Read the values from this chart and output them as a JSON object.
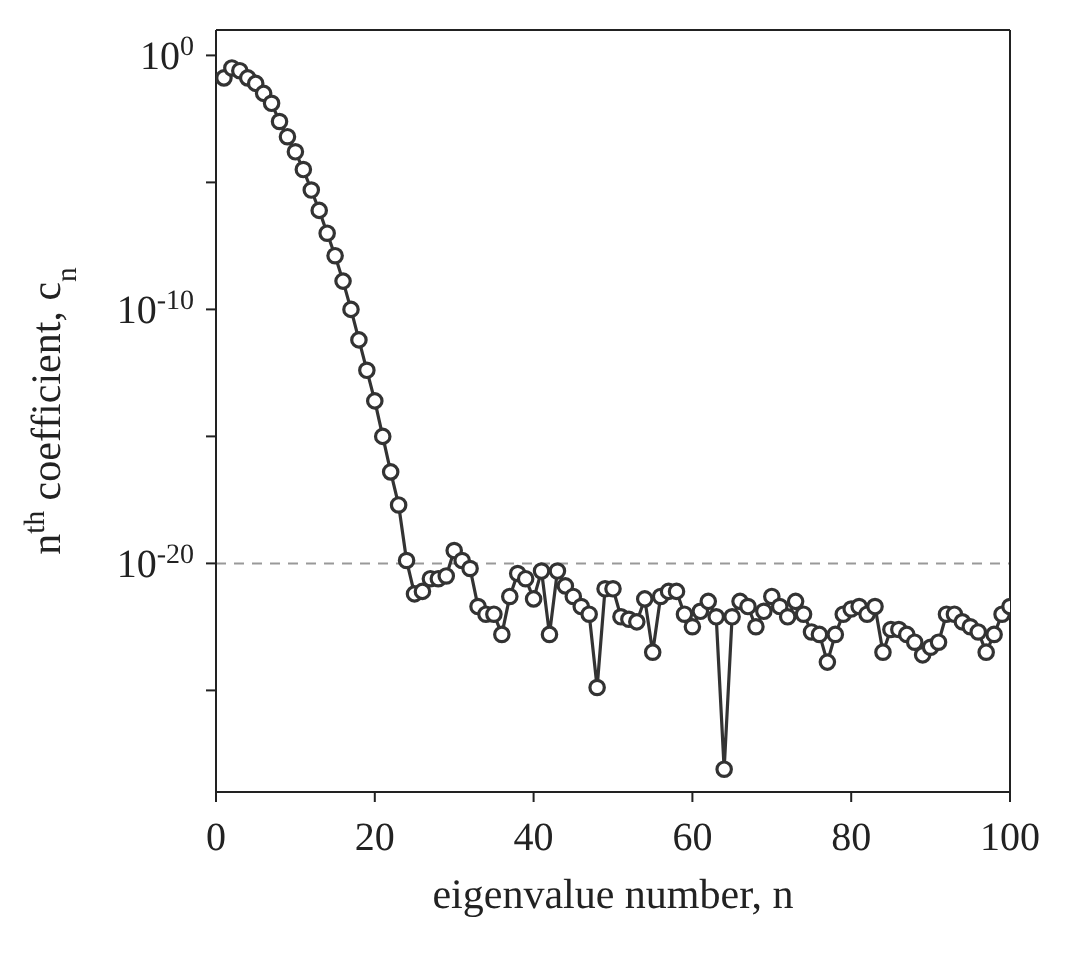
{
  "chart_data": {
    "type": "line",
    "xlabel": "eigenvalue number, n",
    "ylabel": "n$^{th}$ coefficient, c$_{n}$",
    "x": [
      1,
      2,
      3,
      4,
      5,
      6,
      7,
      8,
      9,
      10,
      11,
      12,
      13,
      14,
      15,
      16,
      17,
      18,
      19,
      20,
      21,
      22,
      23,
      24,
      25,
      26,
      27,
      28,
      29,
      30,
      31,
      32,
      33,
      34,
      35,
      36,
      37,
      38,
      39,
      40,
      41,
      42,
      43,
      44,
      45,
      46,
      47,
      48,
      49,
      50,
      51,
      52,
      53,
      54,
      55,
      56,
      57,
      58,
      59,
      60,
      61,
      62,
      63,
      64,
      65,
      66,
      67,
      68,
      69,
      70,
      71,
      72,
      73,
      74,
      75,
      76,
      77,
      78,
      79,
      80,
      81,
      82,
      83,
      84,
      85,
      86,
      87,
      88,
      89,
      90,
      91,
      92,
      93,
      94,
      95,
      96,
      97,
      98,
      99,
      100
    ],
    "series": [
      {
        "color": "#333333",
        "values": [
          0.13,
          0.32,
          0.25,
          0.13,
          0.079,
          0.032,
          0.013,
          0.0025,
          0.00063,
          0.00016,
          3.2e-05,
          5e-06,
          7.9e-07,
          1e-07,
          1.3e-08,
          1.3e-09,
          1e-10,
          6.3e-12,
          4e-13,
          2.5e-14,
          1e-15,
          4e-17,
          2e-18,
          1.3e-20,
          6.3e-22,
          7.9e-22,
          2.5e-21,
          2.5e-21,
          3.2e-21,
          3.2e-20,
          1.3e-20,
          6.3e-21,
          2e-22,
          1e-22,
          1e-22,
          1.6e-23,
          5e-22,
          4e-21,
          2.5e-21,
          4e-22,
          5e-21,
          1.6e-23,
          5e-21,
          1.3e-21,
          5e-22,
          2e-22,
          1e-22,
          1.3e-25,
          1e-21,
          1e-21,
          7.9e-23,
          6.3e-23,
          5e-23,
          4e-22,
          3.2e-24,
          5e-22,
          7.9e-22,
          7.9e-22,
          1e-22,
          3.2e-23,
          1.3e-22,
          3.2e-22,
          7.9e-23,
          7.9e-29,
          7.9e-23,
          3.2e-22,
          2e-22,
          3.2e-23,
          1.3e-22,
          5e-22,
          2e-22,
          7.9e-23,
          3.2e-22,
          1e-22,
          2e-23,
          1.6e-23,
          1.3e-24,
          1.6e-23,
          1e-22,
          1.6e-22,
          2e-22,
          1e-22,
          2e-22,
          3.2e-24,
          2.5e-23,
          2.5e-23,
          1.6e-23,
          7.9e-24,
          2.5e-24,
          5e-24,
          7.9e-24,
          1e-22,
          1e-22,
          5e-23,
          3.2e-23,
          2e-23,
          3.2e-24,
          1.6e-23,
          1e-22,
          2e-22
        ]
      }
    ],
    "xlim": [
      0,
      100
    ],
    "xticks": [
      0,
      20,
      40,
      60,
      80,
      100
    ],
    "ylim": [
      1e-29,
      10
    ],
    "yticks": [
      {
        "value": 1e-25,
        "label": null
      },
      {
        "value": 1e-20,
        "label": "10$^{-20}$"
      },
      {
        "value": 1e-15,
        "label": null
      },
      {
        "value": 1e-10,
        "label": "10$^{-10}$"
      },
      {
        "value": 1e-05,
        "label": null
      },
      {
        "value": 1,
        "label": "10$^{0}$"
      }
    ],
    "log": "y",
    "grid": false,
    "legend": false,
    "marker": "circle",
    "line_style": "solid",
    "ref_lines": [
      {
        "axis": "y",
        "value": 1e-20,
        "color": "#999999",
        "line_style": "dashed"
      }
    ]
  }
}
